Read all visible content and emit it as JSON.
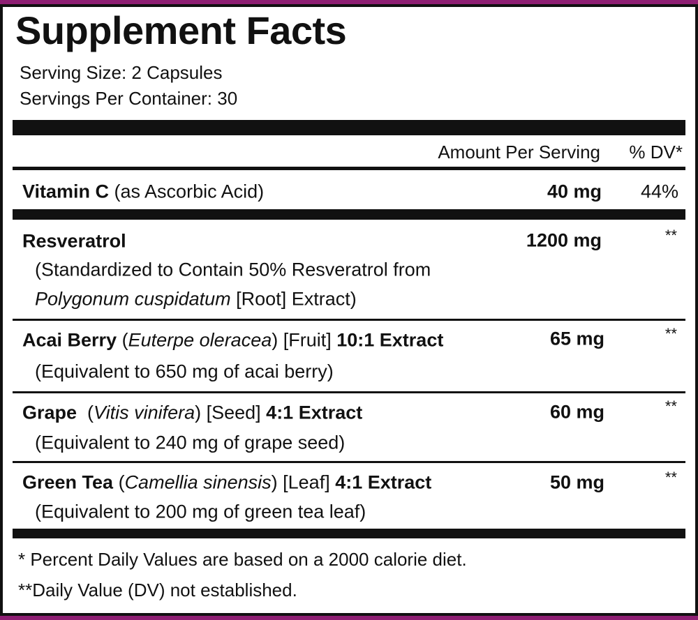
{
  "title": "Supplement Facts",
  "serving_size": "Serving Size: 2 Capsules",
  "servings_per_container": "Servings Per Container: 30",
  "header": {
    "amount": "Amount Per Serving",
    "dv": "% DV*"
  },
  "rows": [
    {
      "name": [
        "Vitamin C",
        " (as Ascorbic Acid)"
      ],
      "amount": "40 mg",
      "dv": "44%"
    },
    {
      "name": [
        "Resveratrol"
      ],
      "detail": [
        [
          "(Standardized to Contain 50% Resveratrol from"
        ],
        [
          "Polygonum cuspidatum",
          " [Root] Extract)"
        ]
      ],
      "amount": "1200 mg",
      "dv": "**"
    },
    {
      "name": [
        "Acai Berry",
        " (",
        "Euterpe oleracea",
        ") [Fruit] ",
        "10:1 Extract"
      ],
      "detail": [
        [
          "(Equivalent to 650 mg of acai berry)"
        ]
      ],
      "amount": "65 mg",
      "dv": "**"
    },
    {
      "name": [
        "Grape",
        "  (",
        "Vitis vinifera",
        ") [Seed] ",
        "4:1 Extract"
      ],
      "detail": [
        [
          "(Equivalent to 240 mg of grape seed)"
        ]
      ],
      "amount": "60 mg",
      "dv": "**"
    },
    {
      "name": [
        "Green Tea",
        " (",
        "Camellia sinensis",
        ") [Leaf] ",
        "4:1 Extract"
      ],
      "detail": [
        [
          "(Equivalent to 200 mg of green tea leaf)"
        ]
      ],
      "amount": "50 mg",
      "dv": "**"
    }
  ],
  "footnotes": [
    "* Percent Daily Values are based on a 2000 calorie diet.",
    "**Daily Value (DV) not established."
  ]
}
